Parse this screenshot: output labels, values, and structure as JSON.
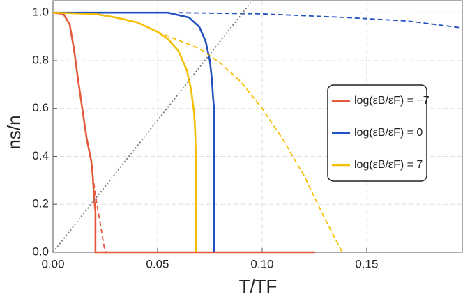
{
  "chart_data": {
    "type": "line",
    "xlabel": "T/TF",
    "ylabel": "ns/n",
    "xlim": [
      0,
      0.1957
    ],
    "ylim": [
      0,
      1.05
    ],
    "xticks": [
      {
        "value": 0,
        "label": "0.00"
      },
      0.05,
      {
        "value": 0.1,
        "label": "0.10"
      },
      0.15
    ],
    "yticks": [
      {
        "value": 0,
        "label": "0.0"
      },
      0.2,
      0.4,
      0.6,
      0.8,
      {
        "value": 1,
        "label": "1.0"
      }
    ],
    "grid": true,
    "series": [
      {
        "name": "log(εB/εF) = −7",
        "color": "#e4593a",
        "style": "solid",
        "x": [
          0,
          0.005,
          0.008,
          0.01,
          0.012,
          0.014,
          0.016,
          0.0183,
          0.019,
          0.0197,
          0.0203,
          0.0203,
          0.1253
        ],
        "values": [
          1,
          0.995,
          0.95,
          0.85,
          0.72,
          0.6,
          0.48,
          0.38,
          0.32,
          0.22,
          0.17,
          0,
          0
        ]
      },
      {
        "color": "#e4593a",
        "style": "dashed",
        "x": [
          0.019,
          0.021,
          0.023,
          0.0245,
          0.0253
        ],
        "values": [
          0.32,
          0.2,
          0.1,
          0.02,
          0
        ]
      },
      {
        "name": "log(εB/εF) = 0",
        "color": "#2150c0",
        "style": "solid",
        "x": [
          0,
          0.04,
          0.055,
          0.065,
          0.07,
          0.073,
          0.075,
          0.076,
          0.0765,
          0.077,
          0.077
        ],
        "values": [
          1,
          1,
          1,
          0.98,
          0.94,
          0.88,
          0.8,
          0.72,
          0.65,
          0.6,
          0
        ]
      },
      {
        "color": "#2150c0",
        "style": "dashed",
        "x": [
          0.06,
          0.1,
          0.14,
          0.17,
          0.1957
        ],
        "values": [
          1,
          0.995,
          0.98,
          0.965,
          0.936
        ]
      },
      {
        "name": "log(εB/εF) = 7",
        "color": "#f6be00",
        "style": "solid",
        "x": [
          0,
          0.02,
          0.03,
          0.04,
          0.05,
          0.055,
          0.06,
          0.064,
          0.066,
          0.0675,
          0.068,
          0.0683,
          0.0683
        ],
        "values": [
          1,
          0.995,
          0.98,
          0.96,
          0.92,
          0.89,
          0.84,
          0.76,
          0.68,
          0.58,
          0.5,
          0.4,
          0
        ]
      },
      {
        "color": "#f6be00",
        "style": "dashed",
        "x": [
          0.05,
          0.07,
          0.08,
          0.09,
          0.1,
          0.11,
          0.12,
          0.13,
          0.1383
        ],
        "values": [
          0.92,
          0.85,
          0.79,
          0.71,
          0.6,
          0.47,
          0.32,
          0.14,
          0
        ]
      },
      {
        "color": "#777777",
        "style": "dotted",
        "x": [
          0,
          0.0953
        ],
        "values": [
          0,
          1.05
        ]
      }
    ]
  }
}
